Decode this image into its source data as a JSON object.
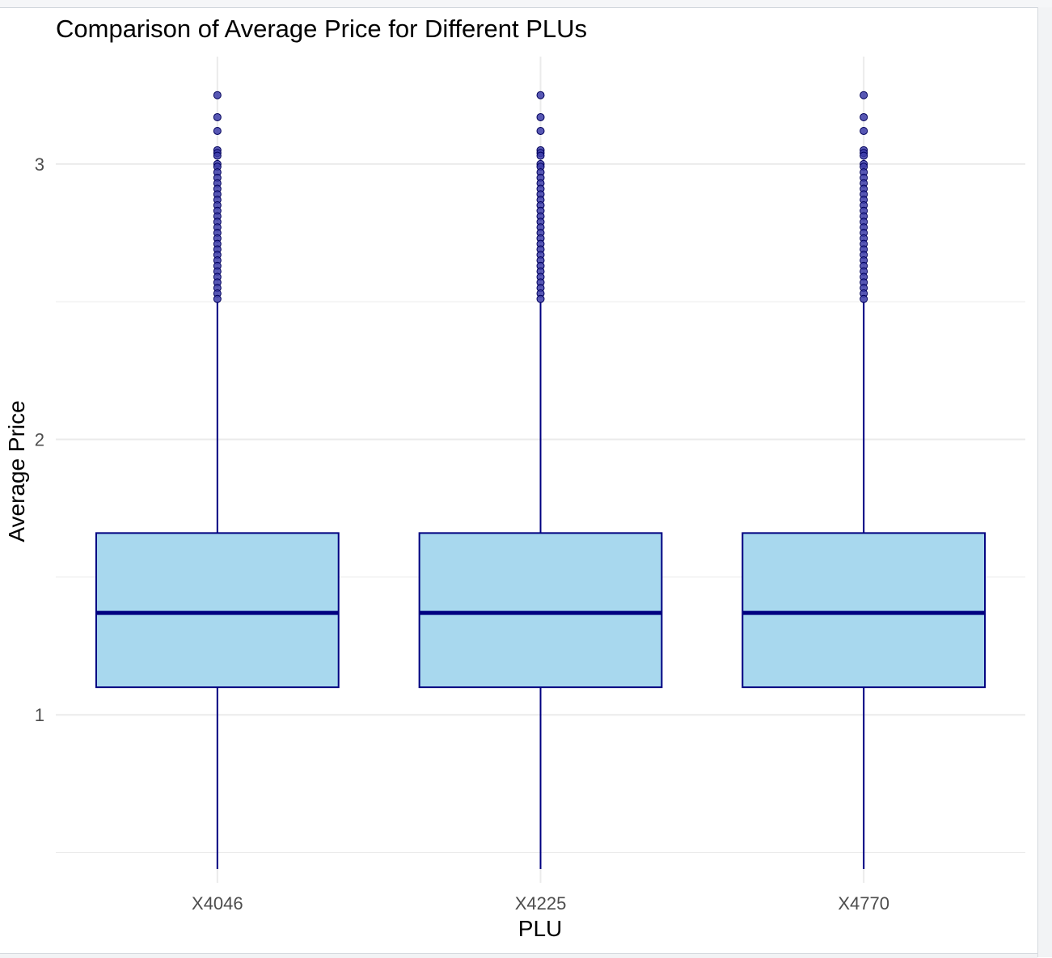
{
  "chart_data": {
    "type": "box",
    "title": "Comparison of Average Price for Different PLUs",
    "xlabel": "PLU",
    "ylabel": "Average Price",
    "categories": [
      "X4046",
      "X4225",
      "X4770"
    ],
    "y_ticks": [
      1,
      2,
      3
    ],
    "ylim": [
      0.39,
      3.39
    ],
    "grid": true,
    "legend": "none",
    "boxes": [
      {
        "category": "X4046",
        "whisker_low": 0.44,
        "q1": 1.1,
        "median": 1.37,
        "q3": 1.66,
        "whisker_high": 2.5,
        "outliers": [
          3.25,
          3.17,
          3.12,
          3.05,
          3.04,
          3.03,
          3.0,
          2.99,
          2.97,
          2.95,
          2.93,
          2.91,
          2.89,
          2.87,
          2.85,
          2.83,
          2.81,
          2.79,
          2.77,
          2.75,
          2.73,
          2.71,
          2.69,
          2.67,
          2.65,
          2.63,
          2.61,
          2.59,
          2.57,
          2.55,
          2.53,
          2.51
        ]
      },
      {
        "category": "X4225",
        "whisker_low": 0.44,
        "q1": 1.1,
        "median": 1.37,
        "q3": 1.66,
        "whisker_high": 2.5,
        "outliers": [
          3.25,
          3.17,
          3.12,
          3.05,
          3.04,
          3.03,
          3.0,
          2.99,
          2.97,
          2.95,
          2.93,
          2.91,
          2.89,
          2.87,
          2.85,
          2.83,
          2.81,
          2.79,
          2.77,
          2.75,
          2.73,
          2.71,
          2.69,
          2.67,
          2.65,
          2.63,
          2.61,
          2.59,
          2.57,
          2.55,
          2.53,
          2.51
        ]
      },
      {
        "category": "X4770",
        "whisker_low": 0.44,
        "q1": 1.1,
        "median": 1.37,
        "q3": 1.66,
        "whisker_high": 2.5,
        "outliers": [
          3.25,
          3.17,
          3.12,
          3.05,
          3.04,
          3.03,
          3.0,
          2.99,
          2.97,
          2.95,
          2.93,
          2.91,
          2.89,
          2.87,
          2.85,
          2.83,
          2.81,
          2.79,
          2.77,
          2.75,
          2.73,
          2.71,
          2.69,
          2.67,
          2.65,
          2.63,
          2.61,
          2.59,
          2.57,
          2.55,
          2.53,
          2.51
        ]
      }
    ],
    "colors": {
      "box_fill": "#a8d8ee",
      "box_stroke": "#000080",
      "median": "#000080",
      "outlier_fill": "#3c3ca8",
      "outlier_stroke": "#00005a",
      "grid": "#ebebeb"
    }
  }
}
